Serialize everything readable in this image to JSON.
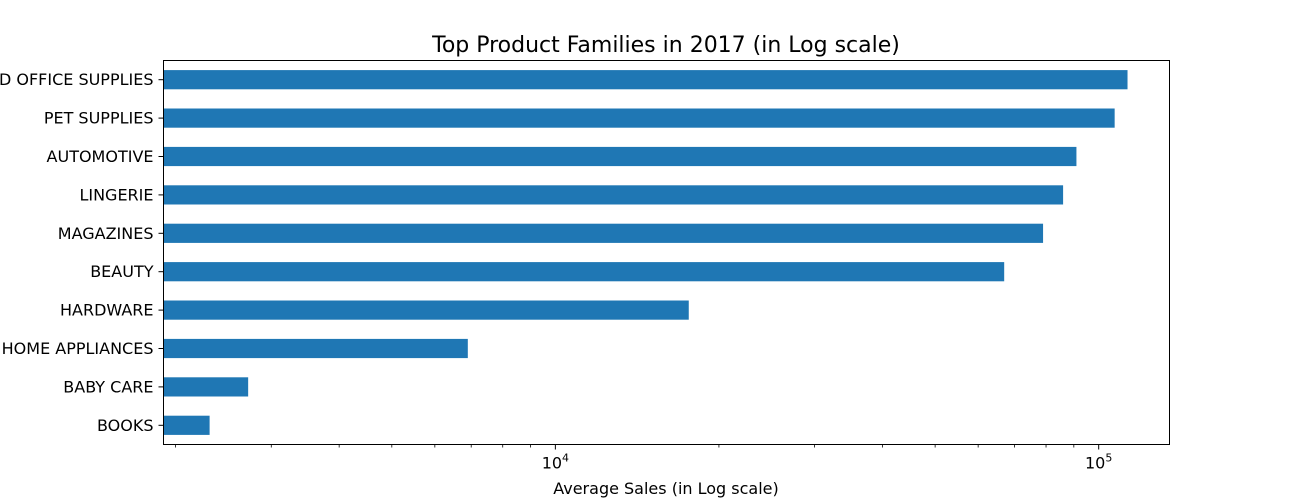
{
  "chart_data": {
    "type": "bar",
    "orientation": "horizontal",
    "title": "Top Product Families in 2017 (in Log scale)",
    "xlabel": "Average Sales (in Log scale)",
    "ylabel": "",
    "x_scale": "log",
    "xlim": [
      1900,
      135000
    ],
    "grid": false,
    "legend": "none",
    "bar_color": "#1f77b4",
    "categories": [
      "SCHOOL AND OFFICE SUPPLIES",
      "PET SUPPLIES",
      "AUTOMOTIVE",
      "LINGERIE",
      "MAGAZINES",
      "BEAUTY",
      "HARDWARE",
      "HOME APPLIANCES",
      "BABY CARE",
      "BOOKS"
    ],
    "values": [
      113000,
      107000,
      91000,
      86000,
      79000,
      67000,
      17600,
      6900,
      2720,
      2310
    ],
    "x_ticks": [
      {
        "label_base": "10",
        "label_exp": "4",
        "value": 10000
      },
      {
        "label_base": "10",
        "label_exp": "5",
        "value": 100000
      }
    ]
  }
}
